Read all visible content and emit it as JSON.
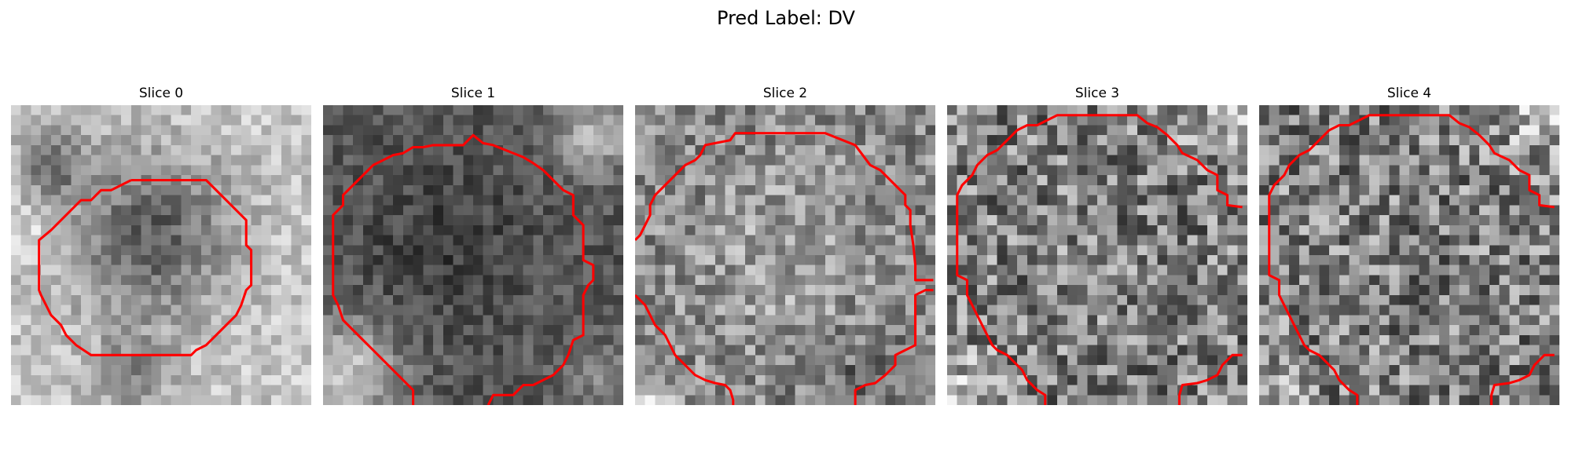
{
  "figure": {
    "title": "Pred Label: DV"
  },
  "slices": [
    {
      "title": "Slice 0"
    },
    {
      "title": "Slice 1"
    },
    {
      "title": "Slice 2"
    },
    {
      "title": "Slice 3"
    },
    {
      "title": "Slice 4"
    }
  ],
  "colors": {
    "contour": "#ff0000",
    "background": "#ffffff",
    "text": "#000000"
  }
}
